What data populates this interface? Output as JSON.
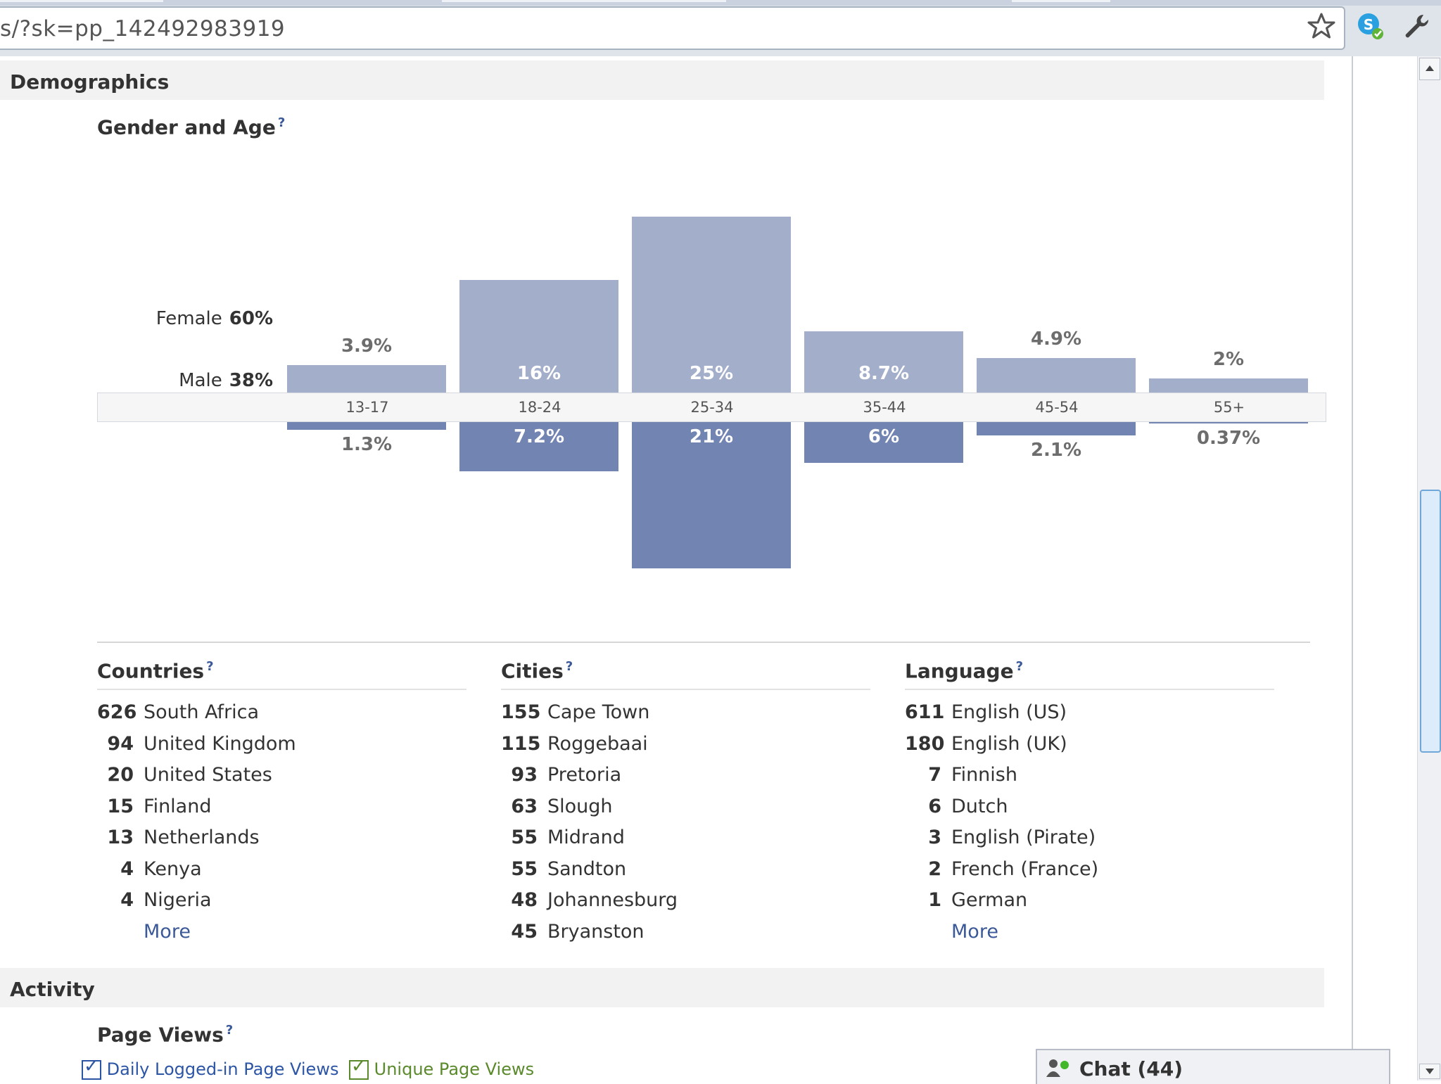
{
  "browser": {
    "url": "s/?sk=pp_142492983919"
  },
  "demographics": {
    "title": "Demographics",
    "gender_age": {
      "title": "Gender and Age",
      "help": "?",
      "female_label": "Female",
      "female_pct": "60%",
      "male_label": "Male",
      "male_pct": "38%"
    },
    "countries": {
      "title": "Countries",
      "help": "?",
      "items": [
        {
          "count": "626",
          "name": "South Africa"
        },
        {
          "count": "94",
          "name": "United Kingdom"
        },
        {
          "count": "20",
          "name": "United States"
        },
        {
          "count": "15",
          "name": "Finland"
        },
        {
          "count": "13",
          "name": "Netherlands"
        },
        {
          "count": "4",
          "name": "Kenya"
        },
        {
          "count": "4",
          "name": "Nigeria"
        }
      ],
      "more": "More"
    },
    "cities": {
      "title": "Cities",
      "help": "?",
      "items": [
        {
          "count": "155",
          "name": "Cape Town"
        },
        {
          "count": "115",
          "name": "Roggebaai"
        },
        {
          "count": "93",
          "name": "Pretoria"
        },
        {
          "count": "63",
          "name": "Slough"
        },
        {
          "count": "55",
          "name": "Midrand"
        },
        {
          "count": "55",
          "name": "Sandton"
        },
        {
          "count": "48",
          "name": "Johannesburg"
        },
        {
          "count": "45",
          "name": "Bryanston"
        }
      ]
    },
    "language": {
      "title": "Language",
      "help": "?",
      "items": [
        {
          "count": "611",
          "name": "English (US)"
        },
        {
          "count": "180",
          "name": "English (UK)"
        },
        {
          "count": "7",
          "name": "Finnish"
        },
        {
          "count": "6",
          "name": "Dutch"
        },
        {
          "count": "3",
          "name": "English (Pirate)"
        },
        {
          "count": "2",
          "name": "French (France)"
        },
        {
          "count": "1",
          "name": "German"
        }
      ],
      "more": "More"
    }
  },
  "activity": {
    "title": "Activity",
    "page_views": {
      "title": "Page Views",
      "help": "?",
      "legend": [
        {
          "label": "Daily Logged-in Page Views",
          "color": "#2d55a6"
        },
        {
          "label": "Unique Page Views",
          "color": "#5a8a2b"
        }
      ]
    }
  },
  "chat": {
    "label": "Chat (44)"
  },
  "colors": {
    "female_bar": "#a3aecb",
    "male_bar": "#7284b2",
    "link": "#3b5998"
  },
  "chart_data": {
    "type": "bar",
    "title": "Gender and Age",
    "categories": [
      "13-17",
      "18-24",
      "25-34",
      "35-44",
      "45-54",
      "55+"
    ],
    "series": [
      {
        "name": "Female",
        "values": [
          3.9,
          16,
          25,
          8.7,
          4.9,
          2
        ],
        "labels": [
          "3.9%",
          "16%",
          "25%",
          "8.7%",
          "4.9%",
          "2%"
        ]
      },
      {
        "name": "Male",
        "values": [
          1.3,
          7.2,
          21,
          6,
          2.1,
          0.37
        ],
        "labels": [
          "1.3%",
          "7.2%",
          "21%",
          "6%",
          "2.1%",
          "0.37%"
        ]
      }
    ],
    "layout": "female bars above axis, male bars below axis",
    "legend": "none"
  }
}
